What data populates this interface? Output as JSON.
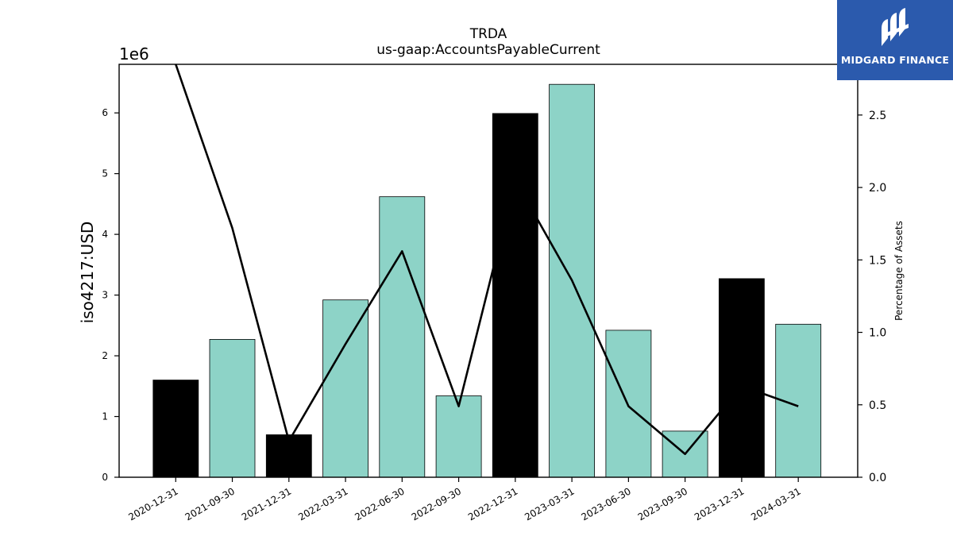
{
  "chart_data": {
    "type": "bar",
    "title": "TRDA",
    "subtitle": "us-gaap:AccountsPayableCurrent",
    "ylabel": "iso4217:USD",
    "y_scale_label": "1e6",
    "y2label": "Percentage of Assets",
    "categories": [
      "2020-12-31",
      "2021-09-30",
      "2021-12-31",
      "2022-03-31",
      "2022-06-30",
      "2022-09-30",
      "2022-12-31",
      "2023-03-31",
      "2023-06-30",
      "2023-09-30",
      "2023-12-31",
      "2024-03-31"
    ],
    "series": [
      {
        "values": [
          1600000,
          2270000,
          700000,
          2920000,
          4620000,
          1340000,
          5990000,
          6470000,
          2420000,
          760000,
          3270000,
          2520000
        ]
      }
    ],
    "bar_colors": [
      "#000000",
      "#8dd3c7",
      "#000000",
      "#8dd3c7",
      "#8dd3c7",
      "#8dd3c7",
      "#000000",
      "#8dd3c7",
      "#8dd3c7",
      "#8dd3c7",
      "#000000",
      "#8dd3c7"
    ],
    "line_series": {
      "values": [
        2.85,
        1.72,
        0.25,
        0.92,
        1.56,
        0.49,
        2.05,
        1.36,
        0.49,
        0.16,
        0.63,
        0.49
      ]
    },
    "ylim": [
      0,
      6800000
    ],
    "y_ticks": [
      0,
      1,
      2,
      3,
      4,
      5,
      6
    ],
    "y2lim": [
      0,
      2.85
    ],
    "y2_ticks": [
      "0.0",
      "0.5",
      "1.0",
      "1.5",
      "2.0",
      "2.5"
    ],
    "grid": false,
    "colors": {
      "bar_primary": "#8dd3c7",
      "bar_alt": "#000000",
      "line": "#000000"
    }
  },
  "brand": {
    "name": "MIDGARD FINANCE",
    "logo": "midgard-logo-icon",
    "background": "#2b5aad"
  }
}
